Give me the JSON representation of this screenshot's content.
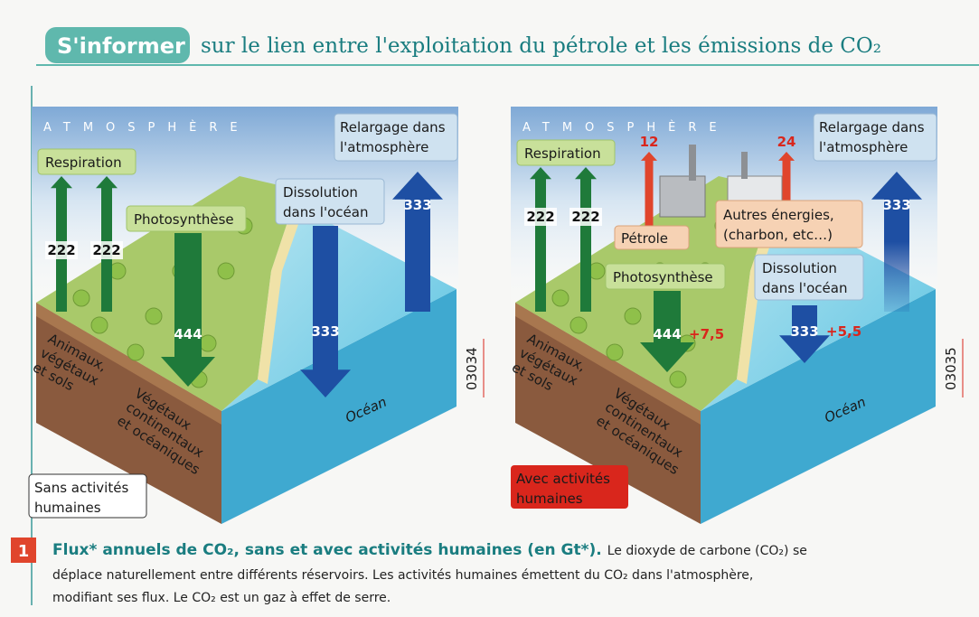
{
  "header": {
    "badge": "S'informer",
    "title": "sur le lien entre l'exploitation du pétrole et les émissions de CO₂"
  },
  "diagrams": [
    {
      "atmosphere": "ATMOSPHÈRE",
      "respiration": "Respiration",
      "respiration_values": [
        "222",
        "222"
      ],
      "photosynthesis": "Photosynthèse",
      "photosynthesis_value": "444",
      "dissolution": [
        "Dissolution",
        "dans l'océan"
      ],
      "dissolution_value": "333",
      "release": [
        "Relargage dans",
        "l'atmosphère"
      ],
      "release_value": "333",
      "land": [
        "Animaux,",
        "végétaux",
        "et sols"
      ],
      "vegetation": [
        "Végétaux",
        "continentaux",
        "et océaniques"
      ],
      "ocean": "Océan",
      "code": "03034",
      "caption": [
        "Sans activités",
        "humaines"
      ]
    },
    {
      "atmosphere": "ATMOSPHÈRE",
      "respiration": "Respiration",
      "respiration_values": [
        "222",
        "222"
      ],
      "oil": "Pétrole",
      "oil_value": "12",
      "other_energy": [
        "Autres énergies,",
        "(charbon, etc…)"
      ],
      "other_energy_value": "24",
      "photosynthesis": "Photosynthèse",
      "photosynthesis_value": "444",
      "photosynthesis_extra": "+7,5",
      "dissolution": [
        "Dissolution",
        "dans l'océan"
      ],
      "dissolution_value": "333",
      "dissolution_extra": "+5,5",
      "release": [
        "Relargage dans",
        "l'atmosphère"
      ],
      "release_value": "333",
      "land": [
        "Animaux,",
        "végétaux",
        "et sols"
      ],
      "vegetation": [
        "Végétaux",
        "continentaux",
        "et océaniques"
      ],
      "ocean": "Océan",
      "code": "03035",
      "caption": [
        "Avec activités",
        "humaines"
      ]
    }
  ],
  "caption": {
    "number": "1",
    "title": "Flux* annuels de CO₂, sans et avec activités humaines (en Gt*).",
    "text": [
      "Le dioxyde de carbone (CO₂) se",
      "déplace naturellement entre différents réservoirs. Les activités humaines émettent du CO₂ dans l'atmosphère,",
      "modifiant ses flux. Le CO₂ est un gaz à effet de serre."
    ]
  }
}
